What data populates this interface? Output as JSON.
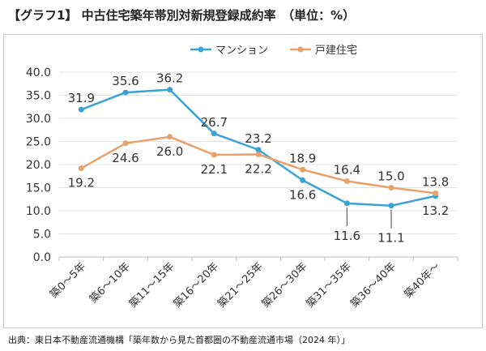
{
  "title": "【グラフ1】 中古住宅築年帯別対新規登録成約率　（単位：%）",
  "source": "出典：東日本不動産流通機構「築年数から見た首都圏の不動産流通市場（2024 年）」",
  "chart_data": {
    "type": "line",
    "categories": [
      "築0〜5年",
      "築6〜10年",
      "築11〜15年",
      "築16〜20年",
      "築21〜25年",
      "築26〜30年",
      "築31〜35年",
      "築36〜40年",
      "築40年〜"
    ],
    "ylim": [
      0,
      40
    ],
    "yticks": [
      "0.0",
      "5.0",
      "10.0",
      "15.0",
      "20.0",
      "25.0",
      "30.0",
      "35.0",
      "40.0"
    ],
    "grid": true,
    "legend": "top-center",
    "series": [
      {
        "name": "マンション",
        "color": "#3aa3d3",
        "values": [
          31.9,
          35.6,
          36.2,
          26.7,
          23.2,
          16.6,
          11.6,
          11.1,
          13.2
        ],
        "labels": [
          "31.9",
          "35.6",
          "36.2",
          "26.7",
          "23.2",
          "16.6",
          "11.6",
          "11.1",
          "13.2"
        ]
      },
      {
        "name": "戸建住宅",
        "color": "#e9a16c",
        "values": [
          19.2,
          24.6,
          26.0,
          22.1,
          22.2,
          18.9,
          16.4,
          15.0,
          13.8
        ],
        "labels": [
          "19.2",
          "24.6",
          "26.0",
          "22.1",
          "22.2",
          "18.9",
          "16.4",
          "15.0",
          "13.8"
        ]
      }
    ]
  }
}
